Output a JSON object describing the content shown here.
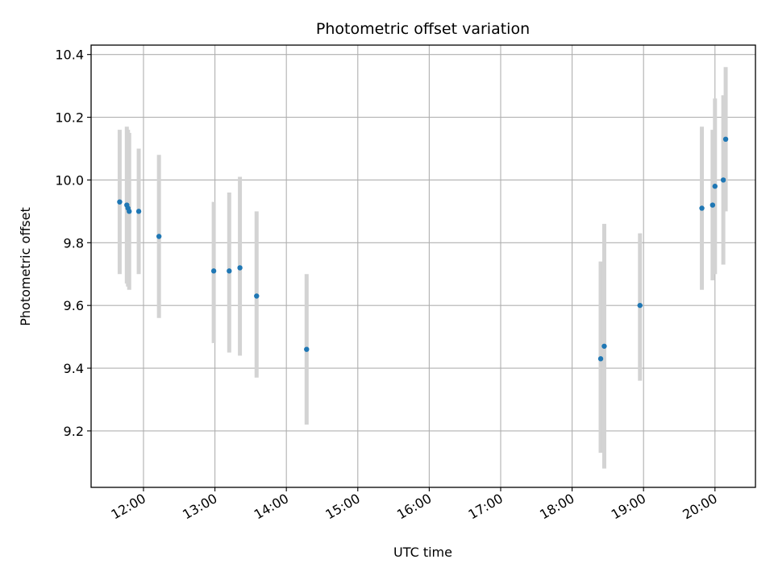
{
  "chart_data": {
    "type": "scatter",
    "title": "Photometric offset variation",
    "xlabel": "UTC time",
    "ylabel": "Photometric offset",
    "xlim": [
      "11:16",
      "20:34"
    ],
    "ylim": [
      9.02,
      10.43
    ],
    "x_ticks": [
      "12:00",
      "13:00",
      "14:00",
      "15:00",
      "16:00",
      "17:00",
      "18:00",
      "19:00",
      "20:00"
    ],
    "y_ticks": [
      9.2,
      9.4,
      9.6,
      9.8,
      10.0,
      10.2,
      10.4
    ],
    "y_tick_labels": [
      "9.2",
      "9.4",
      "9.6",
      "9.8",
      "10.0",
      "10.2",
      "10.4"
    ],
    "grid": true,
    "colors": {
      "points": "#1f77b4",
      "error_bars": "#d3d3d3",
      "grid": "#b0b0b0"
    },
    "series": [
      {
        "points": [
          {
            "x": "11:40",
            "y": 9.93,
            "y_low": 9.7,
            "y_high": 10.16
          },
          {
            "x": "11:46",
            "y": 9.92,
            "y_low": 9.67,
            "y_high": 10.17
          },
          {
            "x": "11:47",
            "y": 9.91,
            "y_low": 9.66,
            "y_high": 10.16
          },
          {
            "x": "11:48",
            "y": 9.9,
            "y_low": 9.65,
            "y_high": 10.15
          },
          {
            "x": "11:56",
            "y": 9.9,
            "y_low": 9.7,
            "y_high": 10.1
          },
          {
            "x": "12:13",
            "y": 9.82,
            "y_low": 9.56,
            "y_high": 10.08
          },
          {
            "x": "12:59",
            "y": 9.71,
            "y_low": 9.48,
            "y_high": 9.93
          },
          {
            "x": "13:12",
            "y": 9.71,
            "y_low": 9.45,
            "y_high": 9.96
          },
          {
            "x": "13:21",
            "y": 9.72,
            "y_low": 9.44,
            "y_high": 10.01
          },
          {
            "x": "13:35",
            "y": 9.63,
            "y_low": 9.37,
            "y_high": 9.9
          },
          {
            "x": "14:17",
            "y": 9.46,
            "y_low": 9.22,
            "y_high": 9.7
          },
          {
            "x": "18:24",
            "y": 9.43,
            "y_low": 9.13,
            "y_high": 9.74
          },
          {
            "x": "18:27",
            "y": 9.47,
            "y_low": 9.08,
            "y_high": 9.86
          },
          {
            "x": "18:57",
            "y": 9.6,
            "y_low": 9.36,
            "y_high": 9.83
          },
          {
            "x": "19:49",
            "y": 9.91,
            "y_low": 9.65,
            "y_high": 10.17
          },
          {
            "x": "19:58",
            "y": 9.92,
            "y_low": 9.68,
            "y_high": 10.16
          },
          {
            "x": "20:00",
            "y": 9.98,
            "y_low": 9.7,
            "y_high": 10.26
          },
          {
            "x": "20:07",
            "y": 10.0,
            "y_low": 9.73,
            "y_high": 10.27
          },
          {
            "x": "20:09",
            "y": 10.13,
            "y_low": 9.9,
            "y_high": 10.36
          }
        ]
      }
    ]
  }
}
